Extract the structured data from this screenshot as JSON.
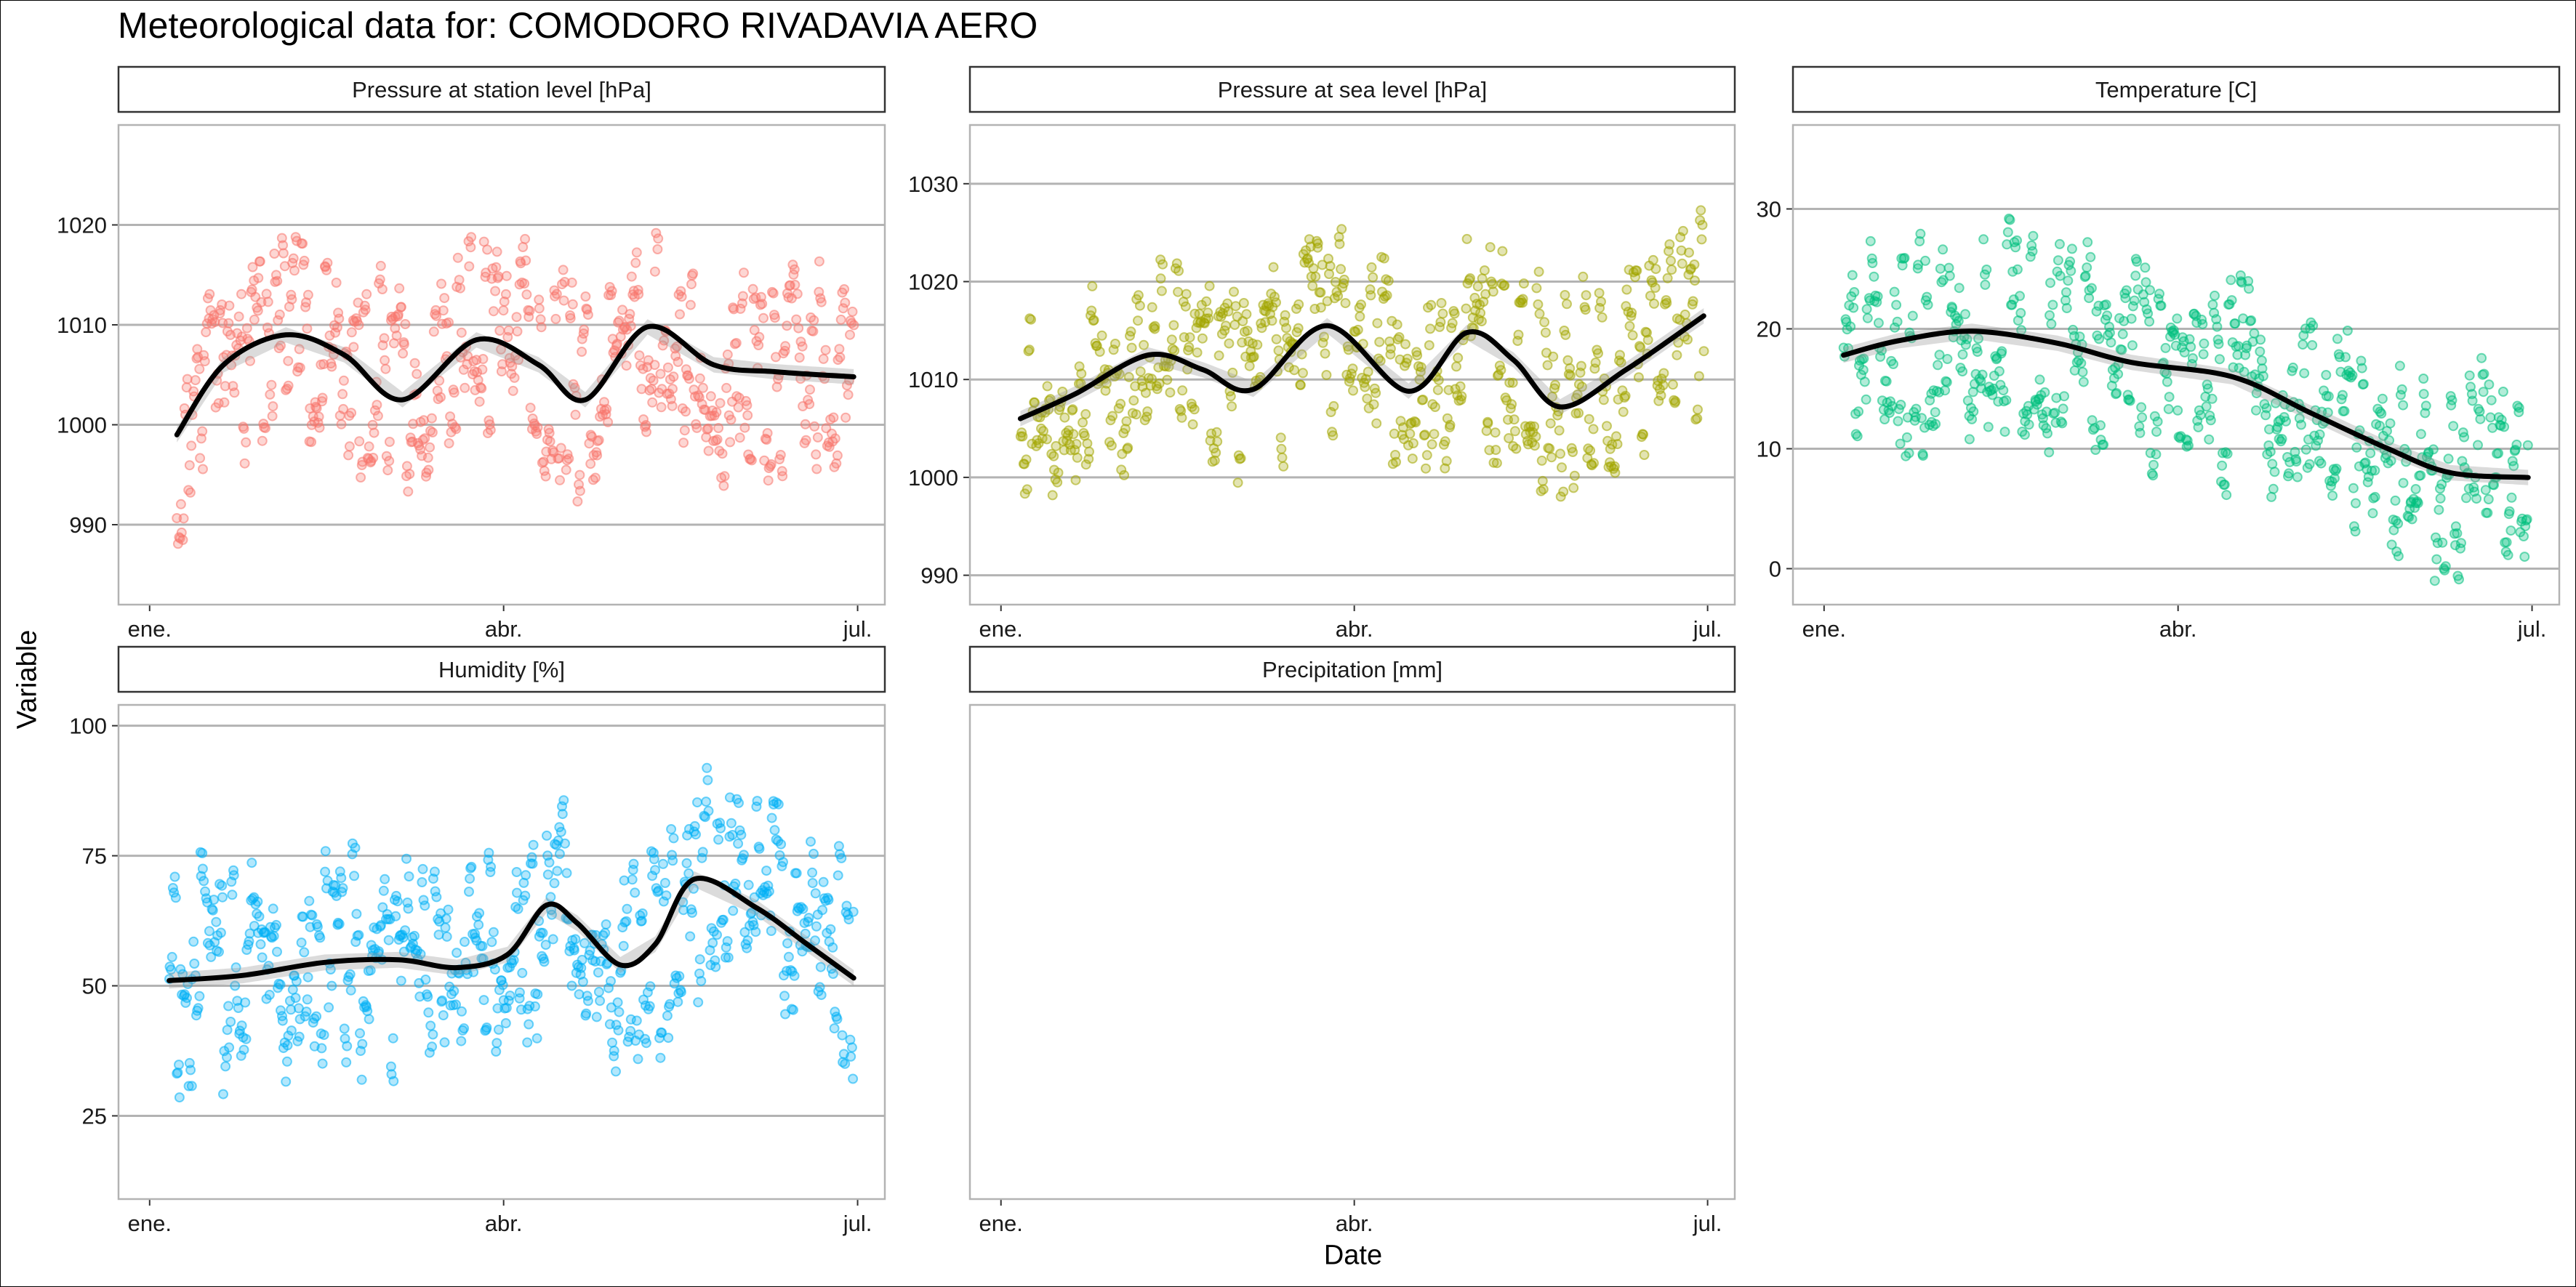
{
  "title": "Meteorological data for: COMODORO RIVADAVIA AERO",
  "ylabel": "Variable",
  "xlabel": "Date",
  "chart_data": {
    "type": "scatter",
    "x_axis": {
      "kind": "date",
      "range": [
        "2019-12-24",
        "2020-07-08"
      ],
      "ticks": [
        {
          "date": "2020-01-01",
          "label": "ene."
        },
        {
          "date": "2020-04-01",
          "label": "abr."
        },
        {
          "date": "2020-07-01",
          "label": "jul."
        }
      ]
    },
    "smoother_color": "#000000",
    "band_color": "#999999",
    "panels": [
      {
        "name": "Pressure at station level [hPa]",
        "color": "#F8766D",
        "ylim": [
          982,
          1030
        ],
        "yticks": [
          990,
          1000,
          1010,
          1020
        ],
        "points_range": [
          983,
          1027
        ],
        "trend": [
          [
            "2020-01-08",
            999
          ],
          [
            "2020-01-20",
            1006
          ],
          [
            "2020-02-05",
            1009
          ],
          [
            "2020-02-20",
            1007
          ],
          [
            "2020-03-06",
            1002.5
          ],
          [
            "2020-03-25",
            1008.5
          ],
          [
            "2020-04-10",
            1006
          ],
          [
            "2020-04-22",
            1002.5
          ],
          [
            "2020-05-08",
            1009.8
          ],
          [
            "2020-05-25",
            1006
          ],
          [
            "2020-06-10",
            1005.3
          ],
          [
            "2020-06-30",
            1004.8
          ]
        ]
      },
      {
        "name": "Pressure at sea level [hPa]",
        "color": "#A3A500",
        "ylim": [
          987,
          1036
        ],
        "yticks": [
          990,
          1000,
          1010,
          1020,
          1030
        ],
        "points_range": [
          989,
          1033
        ],
        "trend": [
          [
            "2020-01-06",
            1006
          ],
          [
            "2020-01-20",
            1008.5
          ],
          [
            "2020-02-08",
            1012.5
          ],
          [
            "2020-02-22",
            1011
          ],
          [
            "2020-03-06",
            1009
          ],
          [
            "2020-03-25",
            1015.5
          ],
          [
            "2020-04-15",
            1008.8
          ],
          [
            "2020-04-30",
            1014.8
          ],
          [
            "2020-05-12",
            1012
          ],
          [
            "2020-05-24",
            1007.2
          ],
          [
            "2020-06-10",
            1011
          ],
          [
            "2020-06-30",
            1016.5
          ]
        ]
      },
      {
        "name": "Temperature [C]",
        "color": "#00BF7D",
        "ylim": [
          -3,
          37
        ],
        "yticks": [
          0,
          10,
          20,
          30
        ],
        "points_range": [
          -2,
          35
        ],
        "trend": [
          [
            "2020-01-06",
            17.8
          ],
          [
            "2020-01-20",
            19
          ],
          [
            "2020-02-08",
            19.8
          ],
          [
            "2020-03-01",
            18.8
          ],
          [
            "2020-03-20",
            17.2
          ],
          [
            "2020-04-15",
            16
          ],
          [
            "2020-05-05",
            13
          ],
          [
            "2020-05-25",
            10
          ],
          [
            "2020-06-10",
            8
          ],
          [
            "2020-06-30",
            7.6
          ]
        ]
      },
      {
        "name": "Humidity [%]",
        "color": "#00B0F6",
        "ylim": [
          9,
          104
        ],
        "yticks": [
          25,
          50,
          75,
          100
        ],
        "points_range": [
          11,
          100
        ],
        "trend": [
          [
            "2020-01-06",
            51
          ],
          [
            "2020-01-25",
            52
          ],
          [
            "2020-02-15",
            54.5
          ],
          [
            "2020-03-05",
            55
          ],
          [
            "2020-03-20",
            53.5
          ],
          [
            "2020-04-02",
            56
          ],
          [
            "2020-04-12",
            65.5
          ],
          [
            "2020-04-20",
            62
          ],
          [
            "2020-05-01",
            54
          ],
          [
            "2020-05-10",
            58
          ],
          [
            "2020-05-20",
            70.5
          ],
          [
            "2020-06-05",
            65
          ],
          [
            "2020-06-18",
            58
          ],
          [
            "2020-06-30",
            51.5
          ]
        ]
      },
      {
        "name": "Precipitation [mm]",
        "color": "#E76BF3",
        "ylim": [
          0,
          1
        ],
        "yticks": [],
        "points_range": [],
        "trend": []
      }
    ]
  }
}
